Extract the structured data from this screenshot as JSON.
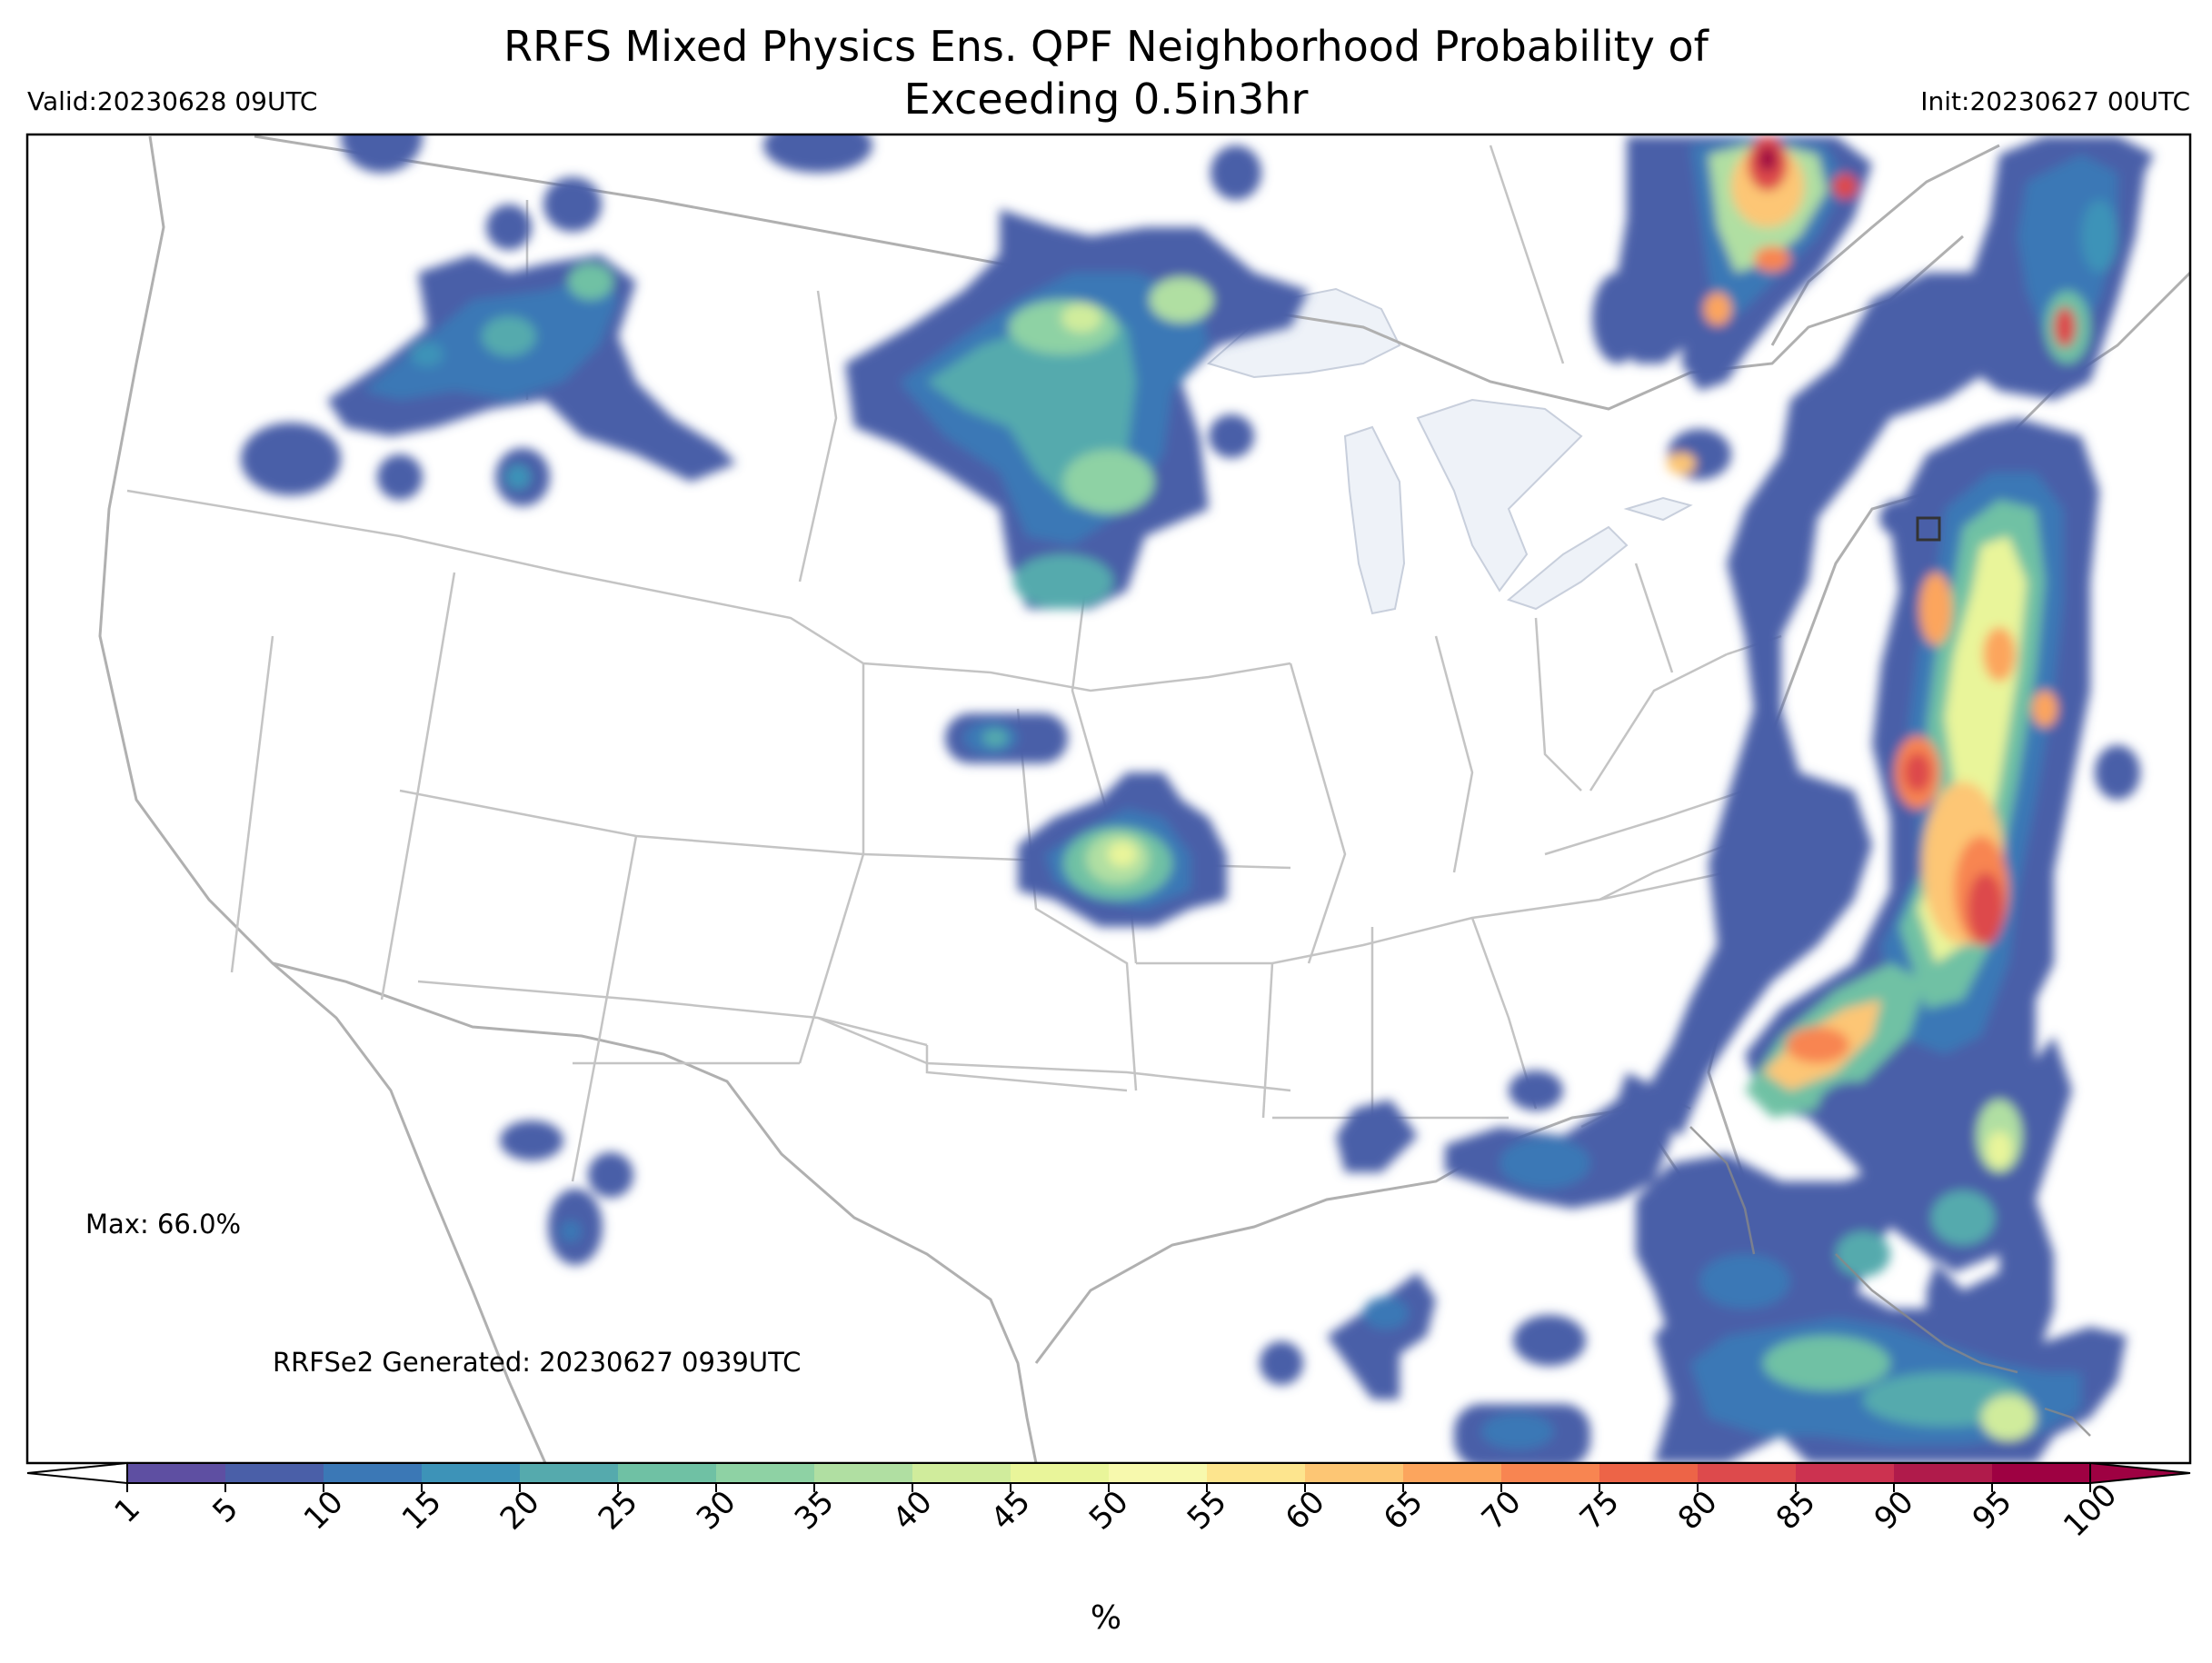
{
  "header": {
    "title_line1": "RRFS Mixed Physics Ens. QPF Neighborhood Probability of",
    "title_line2": "Exceeding 0.5in3hr",
    "valid": "Valid:20230628 09UTC",
    "init": "Init:20230627 00UTC"
  },
  "annotations": {
    "max": "Max: 66.0%",
    "generated": "RRFSe2 Generated: 20230627 0939UTC"
  },
  "colorbar": {
    "units": "%",
    "ticks": [
      "1",
      "5",
      "10",
      "15",
      "20",
      "25",
      "30",
      "35",
      "40",
      "45",
      "50",
      "55",
      "60",
      "65",
      "70",
      "75",
      "80",
      "85",
      "90",
      "95",
      "100"
    ],
    "colors": [
      "#5e4fa2",
      "#4a5fa8",
      "#3b78b6",
      "#3d93b8",
      "#55aaad",
      "#6fc1a4",
      "#8ed2a4",
      "#b0dfa2",
      "#d0ec9c",
      "#e9f59a",
      "#f7f9ad",
      "#fde58e",
      "#fdc674",
      "#fca55d",
      "#f88551",
      "#ed6447",
      "#dd4a4c",
      "#cc3250",
      "#b01b4b",
      "#9e0142"
    ],
    "extend_low_color": "#ffffff",
    "extend_high_color": "#9e0142"
  },
  "map": {
    "region": "CONUS",
    "lake_color": "#eef2f8",
    "border_color": "#b8b8b8",
    "marker": "box-marker"
  }
}
